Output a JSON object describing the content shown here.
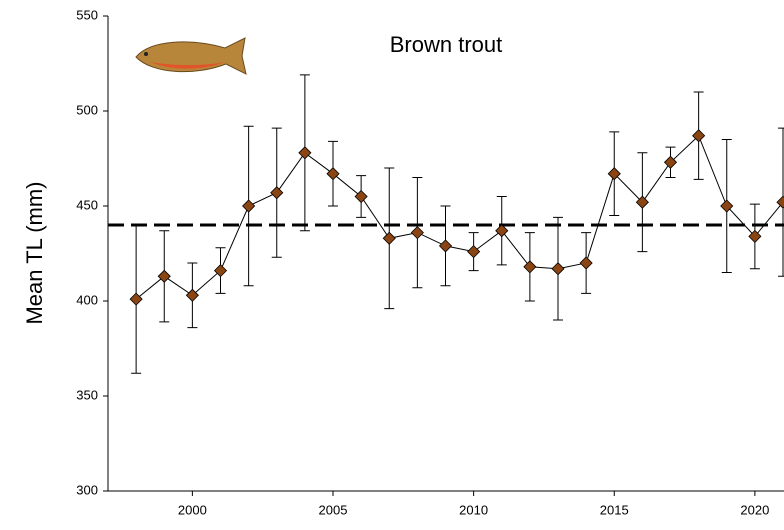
{
  "chart_data": {
    "type": "line",
    "title": "Brown trout",
    "y_label": "Mean TL (mm)",
    "x": [
      1998,
      1999,
      2000,
      2001,
      2002,
      2003,
      2004,
      2005,
      2006,
      2007,
      2008,
      2009,
      2010,
      2011,
      2012,
      2013,
      2014,
      2015,
      2016,
      2017,
      2018,
      2019,
      2020,
      2021
    ],
    "series": [
      {
        "name": "Brown trout",
        "color": "#8b4513",
        "values": [
          401,
          413,
          403,
          416,
          450,
          457,
          478,
          467,
          455,
          433,
          436,
          429,
          426,
          437,
          418,
          417,
          420,
          467,
          452,
          473,
          487,
          450,
          434,
          452
        ],
        "errors": [
          39,
          24,
          17,
          12,
          42,
          34,
          41,
          17,
          11,
          37,
          29,
          21,
          10,
          18,
          18,
          27,
          16,
          22,
          26,
          8,
          23,
          35,
          17,
          39
        ]
      }
    ],
    "reference_line": 440,
    "xlim": [
      1997,
      2021
    ],
    "xticks": [
      2000,
      2005,
      2010,
      2015,
      2020
    ],
    "ylim": [
      300,
      550
    ],
    "yticks": [
      300,
      350,
      400,
      450,
      500,
      550
    ]
  }
}
